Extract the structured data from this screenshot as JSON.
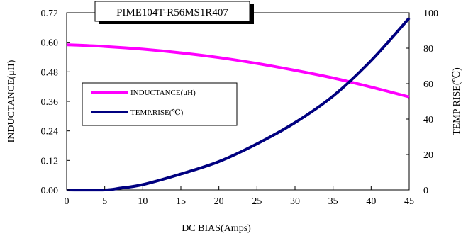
{
  "chart_data": {
    "type": "line",
    "title": "PIME104T-R56MS1R407",
    "xlabel": "DC BIAS(Amps)",
    "ylabel": "INDUCTANCE(μH)",
    "y2label": "TEMP RISE(℃)",
    "xlim": [
      0,
      45
    ],
    "ylim": [
      0,
      0.72
    ],
    "y2lim": [
      0,
      100
    ],
    "x_ticks": [
      "0",
      "5",
      "10",
      "15",
      "20",
      "25",
      "30",
      "35",
      "40",
      "45"
    ],
    "y_ticks": [
      "0.00",
      "0.12",
      "0.24",
      "0.36",
      "0.48",
      "0.60",
      "0.72"
    ],
    "y2_ticks": [
      "0",
      "20",
      "40",
      "60",
      "80",
      "100"
    ],
    "grid": false,
    "legend_position": "left-middle",
    "series": [
      {
        "name": "INDUCTANCE(μH)",
        "axis": "left",
        "color": "#ff00ff",
        "x": [
          0,
          5,
          10,
          15,
          20,
          25,
          30,
          35,
          40,
          45
        ],
        "y": [
          0.59,
          0.583,
          0.572,
          0.557,
          0.538,
          0.514,
          0.486,
          0.455,
          0.418,
          0.378
        ]
      },
      {
        "name": "TEMP.RISE(℃)",
        "axis": "right",
        "color": "#000080",
        "x": [
          0,
          5,
          7,
          10,
          15,
          20,
          25,
          30,
          35,
          40,
          45
        ],
        "y": [
          0,
          0,
          1,
          3,
          9,
          16,
          26,
          38,
          53,
          73,
          97
        ]
      }
    ]
  }
}
